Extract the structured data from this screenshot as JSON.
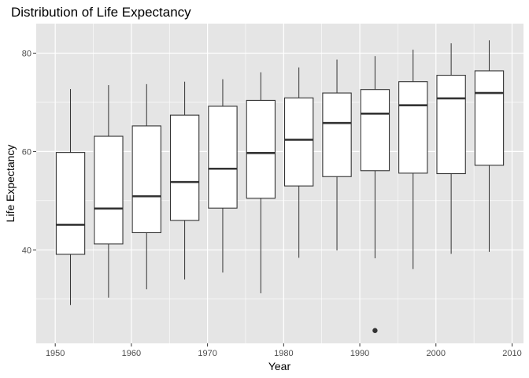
{
  "chart_data": {
    "type": "boxplot",
    "title": "Distribution of Life Expectancy",
    "xlabel": "Year",
    "ylabel": "Life Expectancy",
    "xlim": [
      1947.5,
      2011.5
    ],
    "ylim": [
      21,
      86
    ],
    "x_ticks": [
      1950,
      1960,
      1970,
      1980,
      1990,
      2000,
      2010
    ],
    "y_ticks": [
      40,
      60,
      80
    ],
    "box_width_years": 3.75,
    "grid": true,
    "panel_background": "#e5e5e5",
    "grid_color": "#ffffff",
    "box_fill": "#ffffff",
    "line_color": "#333333",
    "boxes": [
      {
        "x": 1952,
        "whisker_low": 28.8,
        "q1": 39.1,
        "median": 45.1,
        "q3": 59.8,
        "whisker_high": 72.7,
        "outliers": []
      },
      {
        "x": 1957,
        "whisker_low": 30.3,
        "q1": 41.2,
        "median": 48.4,
        "q3": 63.1,
        "whisker_high": 73.5,
        "outliers": []
      },
      {
        "x": 1962,
        "whisker_low": 32.0,
        "q1": 43.5,
        "median": 50.9,
        "q3": 65.2,
        "whisker_high": 73.7,
        "outliers": []
      },
      {
        "x": 1967,
        "whisker_low": 34.0,
        "q1": 46.0,
        "median": 53.8,
        "q3": 67.4,
        "whisker_high": 74.2,
        "outliers": []
      },
      {
        "x": 1972,
        "whisker_low": 35.4,
        "q1": 48.5,
        "median": 56.5,
        "q3": 69.2,
        "whisker_high": 74.7,
        "outliers": []
      },
      {
        "x": 1977,
        "whisker_low": 31.2,
        "q1": 50.5,
        "median": 59.7,
        "q3": 70.4,
        "whisker_high": 76.1,
        "outliers": []
      },
      {
        "x": 1982,
        "whisker_low": 38.4,
        "q1": 53.0,
        "median": 62.4,
        "q3": 70.9,
        "whisker_high": 77.1,
        "outliers": []
      },
      {
        "x": 1987,
        "whisker_low": 39.9,
        "q1": 54.9,
        "median": 65.8,
        "q3": 71.9,
        "whisker_high": 78.7,
        "outliers": []
      },
      {
        "x": 1992,
        "whisker_low": 38.3,
        "q1": 56.1,
        "median": 67.7,
        "q3": 72.6,
        "whisker_high": 79.4,
        "outliers": [
          23.6
        ]
      },
      {
        "x": 1997,
        "whisker_low": 36.1,
        "q1": 55.6,
        "median": 69.4,
        "q3": 74.2,
        "whisker_high": 80.7,
        "outliers": []
      },
      {
        "x": 2002,
        "whisker_low": 39.2,
        "q1": 55.5,
        "median": 70.8,
        "q3": 75.5,
        "whisker_high": 82.0,
        "outliers": []
      },
      {
        "x": 2007,
        "whisker_low": 39.6,
        "q1": 57.2,
        "median": 71.9,
        "q3": 76.4,
        "whisker_high": 82.6,
        "outliers": []
      }
    ]
  }
}
